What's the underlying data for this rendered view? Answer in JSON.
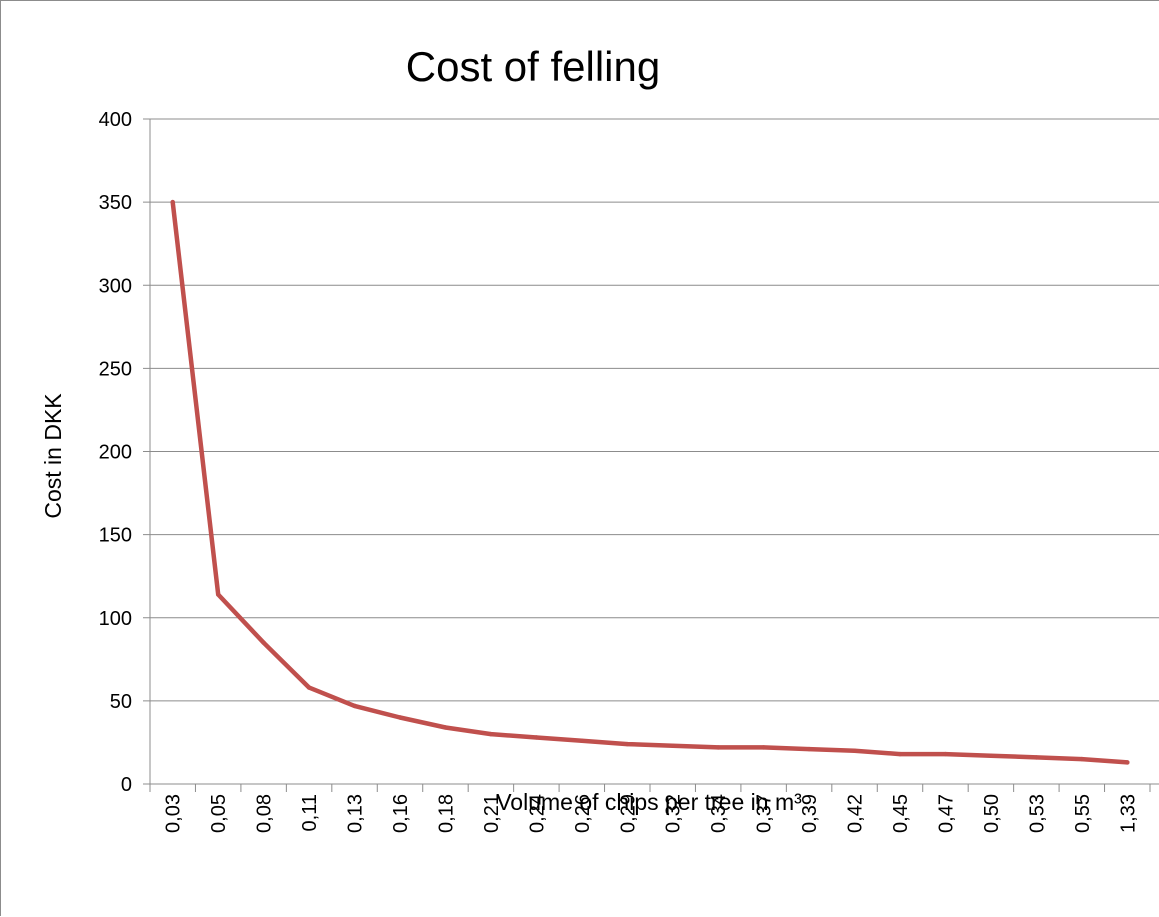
{
  "chart_data": {
    "type": "line",
    "title": "Cost of felling",
    "xlabel": "Volume of chips per tree in m³",
    "ylabel": "Cost in DKK",
    "categories": [
      "0,03",
      "0,05",
      "0,08",
      "0,11",
      "0,13",
      "0,16",
      "0,18",
      "0,21",
      "0,24",
      "0,26",
      "0,29",
      "0,32",
      "0,34",
      "0,37",
      "0,39",
      "0,42",
      "0,45",
      "0,47",
      "0,50",
      "0,53",
      "0,55",
      "1,33"
    ],
    "series": [
      {
        "values": [
          350,
          114,
          85,
          58,
          47,
          40,
          34,
          30,
          28,
          26,
          24,
          23,
          22,
          22,
          21,
          20,
          18,
          18,
          17,
          16,
          15,
          13
        ]
      }
    ],
    "yticks": [
      "0",
      "50",
      "100",
      "150",
      "200",
      "250",
      "300",
      "350",
      "400"
    ],
    "ylim": [
      0,
      400
    ],
    "grid": true,
    "colors": {
      "line": "#c0504d",
      "grid": "#8c8c8c",
      "axis": "#8c8c8c"
    }
  }
}
